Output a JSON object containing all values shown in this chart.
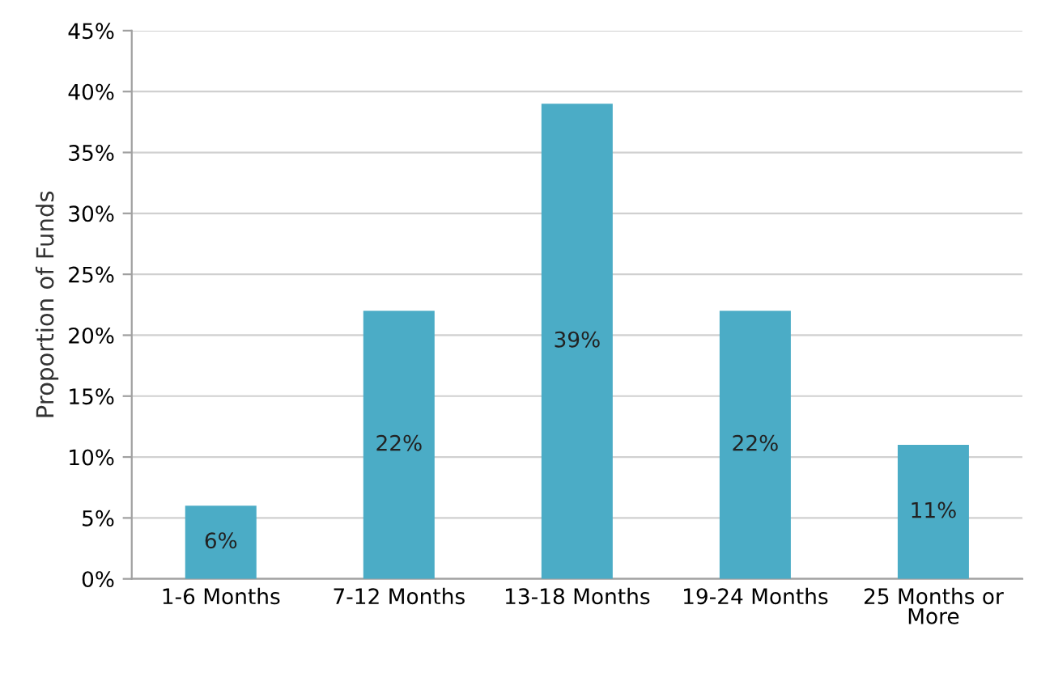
{
  "chart_data": {
    "type": "bar",
    "ylabel": "Proportion of Funds",
    "categories": [
      "1-6 Months",
      "7-12 Months",
      "13-18 Months",
      "19-24 Months",
      "25 Months or\nMore"
    ],
    "values": [
      6,
      22,
      39,
      22,
      11
    ],
    "color": "#4bacc6",
    "value_labels": [
      "6%",
      "22%",
      "39%",
      "22%",
      "11%"
    ],
    "ylim": [
      0,
      45
    ],
    "yticks": [
      {
        "value": 0,
        "label": "0%"
      },
      {
        "value": 5,
        "label": "5%"
      },
      {
        "value": 10,
        "label": "10%"
      },
      {
        "value": 15,
        "label": "15%"
      },
      {
        "value": 20,
        "label": "20%"
      },
      {
        "value": 25,
        "label": "25%"
      },
      {
        "value": 30,
        "label": "30%"
      },
      {
        "value": 35,
        "label": "35%"
      },
      {
        "value": 40,
        "label": "40%"
      },
      {
        "value": 45,
        "label": "45%"
      }
    ],
    "grid": "y"
  }
}
